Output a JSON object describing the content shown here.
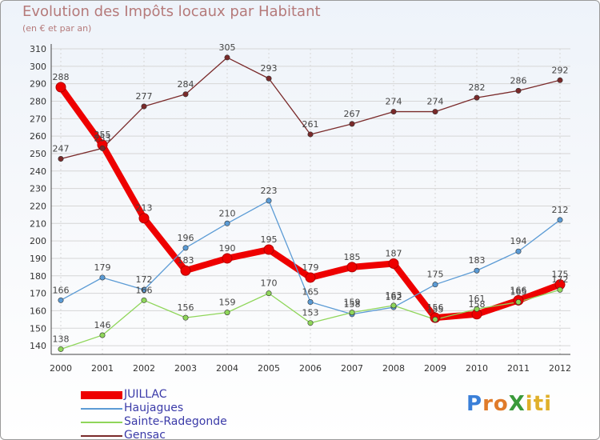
{
  "title": "Evolution des Impôts locaux par Habitant",
  "subtitle": "(en € et par an)",
  "logo": "ProXiti",
  "chart_data": {
    "type": "line",
    "title": "Evolution des Impôts locaux par Habitant",
    "subtitle": "(en € et par an)",
    "xlabel": "",
    "ylabel": "",
    "ylim": [
      135,
      310
    ],
    "ytick_step": 10,
    "ytick_min": 140,
    "categories": [
      "2000",
      "2001",
      "2002",
      "2003",
      "2004",
      "2005",
      "2006",
      "2007",
      "2008",
      "2009",
      "2010",
      "2011",
      "2012"
    ],
    "series": [
      {
        "name": "JUILLAC",
        "color": "#ee0000",
        "emphasis": true,
        "values": [
          288,
          255,
          213,
          183,
          190,
          195,
          179,
          185,
          187,
          156,
          158,
          166,
          175
        ],
        "labels": [
          "288",
          "255",
          "213",
          "183",
          "190",
          "195",
          "179",
          "185",
          "187",
          "156",
          "158",
          "166",
          "175"
        ]
      },
      {
        "name": "Haujagues",
        "color": "#5b9bd5",
        "values": [
          166,
          179,
          172,
          196,
          210,
          223,
          165,
          158,
          162,
          175,
          183,
          194,
          212
        ],
        "labels": [
          "166",
          "179",
          "172",
          "196",
          "210",
          "223",
          "165",
          "158",
          "162",
          "175",
          "183",
          "194",
          "212"
        ]
      },
      {
        "name": "Sainte-Radegonde",
        "color": "#8fd65a",
        "values": [
          138,
          146,
          166,
          156,
          159,
          170,
          153,
          159,
          163,
          155,
          161,
          165,
          172
        ],
        "labels": [
          "138",
          "146",
          "166",
          "156",
          "159",
          "170",
          "153",
          "159",
          "163",
          "155",
          "161",
          "165",
          "172"
        ]
      },
      {
        "name": "Gensac",
        "color": "#7a2a2a",
        "values": [
          247,
          253,
          277,
          284,
          305,
          293,
          261,
          267,
          274,
          274,
          282,
          286,
          292
        ],
        "labels": [
          "247",
          "253",
          "277",
          "284",
          "305",
          "293",
          "261",
          "267",
          "274",
          "274",
          "282",
          "286",
          "292"
        ]
      }
    ],
    "legend_position": "bottom-left",
    "grid": true
  }
}
